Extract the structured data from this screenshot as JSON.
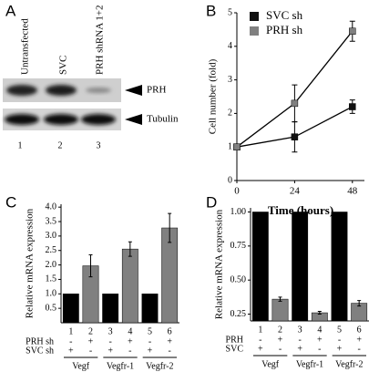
{
  "blot": {
    "panel": "A",
    "lanes": [
      "Untransfected",
      "SVC",
      "PRH shRNA 1+2"
    ],
    "lane_numbers": [
      "1",
      "2",
      "3"
    ],
    "bands": [
      "PRH",
      "Tubulin"
    ]
  },
  "chart_data": [
    {
      "type": "line",
      "panel": "B",
      "x_label": "Time  (hours)",
      "y_label": "Cell number (fold)",
      "x": [
        0,
        24,
        48
      ],
      "series": [
        {
          "name": "SVC sh",
          "color": "#111111",
          "values": [
            1,
            1.3,
            2.2
          ],
          "errors": [
            0.05,
            0.45,
            0.2
          ]
        },
        {
          "name": "PRH sh",
          "color": "#808080",
          "values": [
            1,
            2.3,
            4.45
          ],
          "errors": [
            0.05,
            0.55,
            0.3
          ]
        }
      ],
      "xlim": [
        0,
        53
      ],
      "xticks": [
        0,
        24,
        48
      ],
      "ylim": [
        0,
        5
      ],
      "yticks": [
        0,
        1,
        2,
        3,
        4,
        5
      ]
    },
    {
      "type": "bar",
      "panel": "C",
      "y_label": "Relative mRNA expression",
      "categories": [
        "1",
        "2",
        "3",
        "4",
        "5",
        "6"
      ],
      "values": [
        1,
        1.97,
        1,
        2.55,
        1,
        3.28
      ],
      "errors": [
        null,
        0.38,
        null,
        0.25,
        null,
        0.5
      ],
      "colors": [
        "#000000",
        "#808080",
        "#000000",
        "#808080",
        "#000000",
        "#808080"
      ],
      "rows": [
        {
          "name": "PRH sh",
          "signs": [
            "-",
            "+",
            "-",
            "+",
            "-",
            "+"
          ]
        },
        {
          "name": "SVC sh",
          "signs": [
            "+",
            "-",
            "+",
            "-",
            "+",
            "-"
          ]
        }
      ],
      "groups": [
        "Vegf",
        "Vegfr-1",
        "Vegfr-2"
      ],
      "ylim": [
        0,
        4.1
      ],
      "yticks": [
        0.5,
        {
          "value": 1,
          "label": "1.0"
        },
        1.5,
        {
          "value": 2,
          "label": "2.0"
        },
        2.5,
        {
          "value": 3,
          "label": "3.0"
        },
        3.5,
        {
          "value": 4,
          "label": "4.0"
        }
      ]
    },
    {
      "type": "bar",
      "panel": "D",
      "y_label": "Relative mRNA expression",
      "categories": [
        "1",
        "2",
        "3",
        "4",
        "5",
        "6"
      ],
      "values": [
        1,
        0.36,
        1,
        0.26,
        1,
        0.33
      ],
      "errors": [
        null,
        0.015,
        null,
        0.01,
        null,
        0.02
      ],
      "colors": [
        "#000000",
        "#808080",
        "#000000",
        "#808080",
        "#000000",
        "#808080"
      ],
      "rows": [
        {
          "name": "PRH",
          "signs": [
            "-",
            "+",
            "-",
            "+",
            "-",
            "+"
          ]
        },
        {
          "name": "SVC",
          "signs": [
            "+",
            "-",
            "+",
            "-",
            "+",
            "-"
          ]
        }
      ],
      "groups": [
        "Vegf",
        "Vegfr-1",
        "Vegfr-2"
      ],
      "ylim": [
        0.2,
        1.03
      ],
      "yticks": [
        0.25,
        {
          "value": 0.5,
          "label": "0.50"
        },
        0.75,
        {
          "value": 1,
          "label": "1.00"
        }
      ]
    }
  ]
}
